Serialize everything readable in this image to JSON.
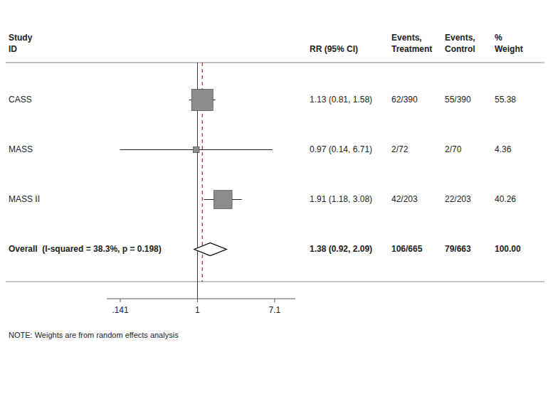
{
  "chart_data": {
    "type": "forest",
    "categories": [
      "CASS",
      "MASS",
      "MASS II"
    ],
    "values": [
      1.13,
      0.97,
      1.91
    ],
    "ci_low": [
      0.81,
      0.14,
      1.18
    ],
    "ci_high": [
      1.58,
      6.71,
      3.08
    ],
    "value_labels": [
      "1.13 (0.81, 1.58)",
      "0.97 (0.14, 6.71)",
      "1.91 (1.18, 3.08)"
    ],
    "events_treatment": [
      "62/390",
      "2/72",
      "42/203"
    ],
    "events_control": [
      "55/390",
      "2/70",
      "22/203"
    ],
    "weight": [
      55.38,
      4.36,
      40.26
    ],
    "weight_labels": [
      "55.38",
      "4.36",
      "40.26"
    ],
    "overall": {
      "name": "Overall  (I-squared = 38.3%, p = 0.198)",
      "value": 1.38,
      "ci_low": 0.92,
      "ci_high": 2.09,
      "value_label": "1.38 (0.92, 2.09)",
      "events_treatment": "106/665",
      "events_control": "79/663",
      "weight": 100.0,
      "weight_label": "100.00"
    },
    "headers": {
      "study": [
        "Study",
        "ID"
      ],
      "rr": [
        "RR (95% CI)"
      ],
      "treatment": [
        "Events,",
        "Treatment"
      ],
      "control": [
        "Events,",
        "Control"
      ],
      "weight": [
        "%",
        "Weight"
      ]
    },
    "log": "x",
    "xlim": [
      0.1,
      12.0
    ],
    "xticks": [
      {
        "value": 0.141,
        "label": ".141"
      },
      1,
      7.1
    ],
    "null_line": 1.0,
    "dashed_line": 1.13,
    "dashed_color": "#aa0000",
    "color": "#8c8c8c",
    "note": "NOTE: Weights are from random effects analysis"
  }
}
